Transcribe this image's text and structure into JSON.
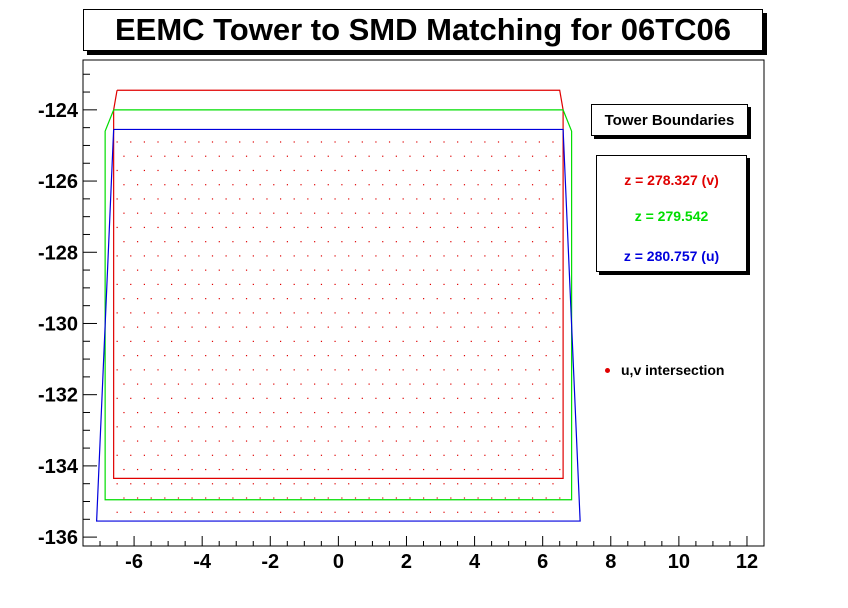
{
  "chart_data": {
    "type": "line",
    "title": "EEMC Tower to SMD Matching for 06TC06",
    "xlabel": "",
    "ylabel": "",
    "xlim": [
      -7.5,
      12.5
    ],
    "ylim": [
      -136.25,
      -122.6
    ],
    "x_ticks": [
      "-6",
      "-4",
      "-2",
      "0",
      "2",
      "4",
      "6",
      "8",
      "10",
      "12"
    ],
    "y_ticks": [
      "-124",
      "-126",
      "-128",
      "-130",
      "-132",
      "-134",
      "-136"
    ],
    "series": [
      {
        "name": "z = 278.327 (v)",
        "color": "#e00000",
        "x": [
          -6.5,
          6.5,
          6.6,
          6.6,
          -6.6,
          -6.6,
          -6.5
        ],
        "y": [
          -123.45,
          -123.45,
          -124.0,
          -134.35,
          -134.35,
          -124.0,
          -123.45
        ]
      },
      {
        "name": "z = 279.542",
        "color": "#00dd00",
        "x": [
          -6.6,
          6.6,
          6.85,
          6.85,
          -6.85,
          -6.85,
          -6.6
        ],
        "y": [
          -124.0,
          -124.0,
          -124.6,
          -134.95,
          -134.95,
          -124.6,
          -124.0
        ]
      },
      {
        "name": "z = 280.757 (u)",
        "color": "#0000dd",
        "x": [
          -6.6,
          6.6,
          7.1,
          -7.1,
          -6.6
        ],
        "y": [
          -124.55,
          -124.55,
          -135.55,
          -135.55,
          -124.55
        ]
      }
    ],
    "intersections": {
      "name": "u,v intersection",
      "color": "#e00000",
      "x_range": [
        -6.5,
        6.5
      ],
      "y_range": [
        -135.3,
        -124.7
      ],
      "spacing": [
        0.4,
        0.4
      ]
    },
    "legend": {
      "header": "Tower Boundaries",
      "entries": [
        {
          "label": "z = 278.327 (v)",
          "color": "#e00000"
        },
        {
          "label": "z = 279.542",
          "color": "#00dd00"
        },
        {
          "label": "z = 280.757 (u)",
          "color": "#0000dd"
        }
      ],
      "placement": "right"
    },
    "grid": false
  }
}
